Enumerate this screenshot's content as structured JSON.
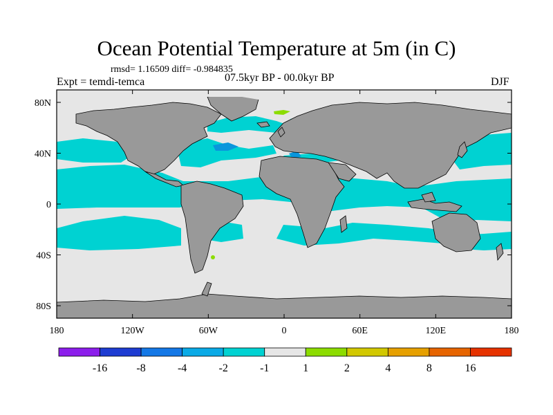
{
  "title": "Ocean Potential Temperature at 5m (in C)",
  "stats_line": "rmsd= 1.16509 diff= -0.984835",
  "experiment_label": "Expt = temdi-temca",
  "period_label": "07.5kyr BP - 00.0kyr BP",
  "season_label": "DJF",
  "map": {
    "x_ticks": [
      "180",
      "120W",
      "60W",
      "0",
      "60E",
      "120E",
      "180"
    ],
    "y_ticks": [
      "80N",
      "40N",
      "0",
      "40S",
      "80S"
    ],
    "colors": {
      "ocean_neutral": "#e6e6e6",
      "land": "#999999",
      "cyan_anomaly": "#00d2d2",
      "blue_anomaly": "#0a96dc",
      "green_anomaly": "#8cdc00"
    }
  },
  "colorbar": {
    "colors": [
      "#8c1eeb",
      "#1e3cd2",
      "#1478e6",
      "#0aaae6",
      "#00d2d2",
      "#e6e6e6",
      "#8cdc00",
      "#d2c800",
      "#e6a000",
      "#e66400",
      "#e63200"
    ],
    "labels": [
      "-16",
      "-8",
      "-4",
      "-2",
      "-1",
      "1",
      "2",
      "4",
      "8",
      "16"
    ]
  }
}
